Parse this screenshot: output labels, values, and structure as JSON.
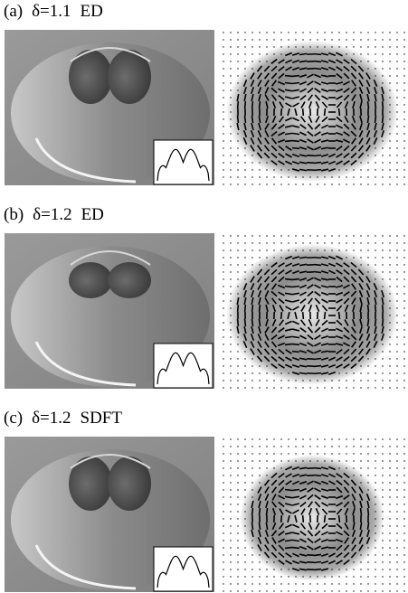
{
  "panels": [
    {
      "label": "(a)",
      "parameter": "δ=1.1",
      "method": "ED"
    },
    {
      "label": "(b)",
      "parameter": "δ=1.2",
      "method": "ED"
    },
    {
      "label": "(c)",
      "parameter": "δ=1.2",
      "method": "SDFT"
    }
  ]
}
